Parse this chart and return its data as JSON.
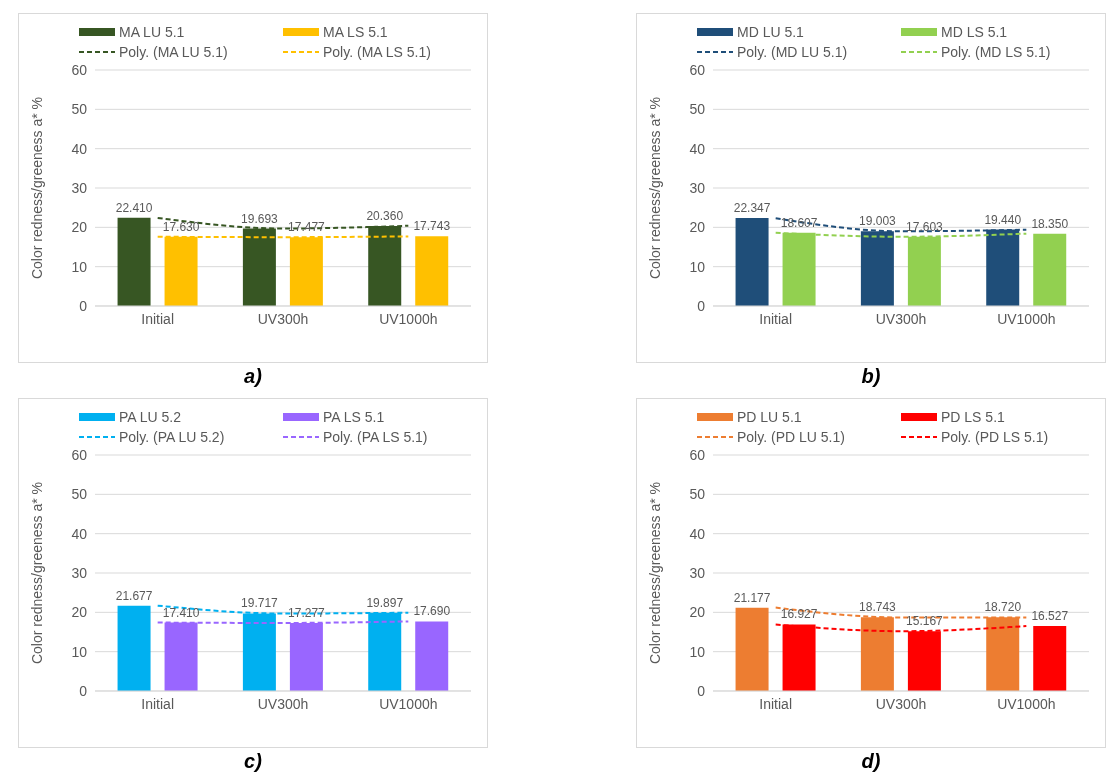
{
  "chart_data": [
    {
      "type": "bar",
      "ylabel": "Color redness/greeness a* %",
      "categories": [
        "Initial",
        "UV300h",
        "UV1000h"
      ],
      "ylim": [
        0,
        60
      ],
      "yticks": [
        0,
        10,
        20,
        30,
        40,
        50,
        60
      ],
      "grid": "y",
      "legend": "top",
      "annotations": [
        "a)"
      ],
      "series": [
        {
          "name": "MA LU 5.1",
          "color": "#375623",
          "values": [
            22.41,
            19.693,
            20.36
          ],
          "value_labels": [
            "22.410",
            "19.693",
            "20.360"
          ]
        },
        {
          "name": "MA LS 5.1",
          "color": "#ffc000",
          "values": [
            17.63,
            17.477,
            17.743
          ],
          "value_labels": [
            "17.630",
            "17.477",
            "17.743"
          ]
        },
        {
          "name": "Poly. (MA LU 5.1)",
          "type": "line",
          "line_style": "dashed",
          "marker": "none",
          "color": "#375623",
          "x": [
            "Initial",
            "UV300h",
            "UV1000h"
          ],
          "values": [
            22.4,
            19.7,
            20.4
          ]
        },
        {
          "name": "Poly. (MA LS 5.1)",
          "type": "line",
          "line_style": "dashed",
          "marker": "none",
          "color": "#ffc000",
          "x": [
            "Initial",
            "UV300h",
            "UV1000h"
          ],
          "values": [
            17.6,
            17.5,
            17.7
          ]
        }
      ]
    },
    {
      "type": "bar",
      "ylabel": "Color redness/greeness a* %",
      "categories": [
        "Initial",
        "UV300h",
        "UV1000h"
      ],
      "ylim": [
        0,
        60
      ],
      "yticks": [
        0,
        10,
        20,
        30,
        40,
        50,
        60
      ],
      "grid": "y",
      "legend": "top",
      "annotations": [
        "b)"
      ],
      "series": [
        {
          "name": "MD LU 5.1",
          "color": "#1f4e79",
          "values": [
            22.347,
            19.003,
            19.44
          ],
          "value_labels": [
            "22.347",
            "19.003",
            "19.440"
          ]
        },
        {
          "name": "MD LS 5.1",
          "color": "#92d050",
          "values": [
            18.607,
            17.603,
            18.35
          ],
          "value_labels": [
            "18.607",
            "17.603",
            "18.350"
          ]
        },
        {
          "name": "Poly. (MD LU 5.1)",
          "type": "line",
          "line_style": "dashed",
          "marker": "none",
          "color": "#1f4e79",
          "x": [
            "Initial",
            "UV300h",
            "UV1000h"
          ],
          "values": [
            22.3,
            19.0,
            19.4
          ]
        },
        {
          "name": "Poly. (MD LS 5.1)",
          "type": "line",
          "line_style": "dashed",
          "marker": "none",
          "color": "#92d050",
          "x": [
            "Initial",
            "UV300h",
            "UV1000h"
          ],
          "values": [
            18.6,
            17.6,
            18.4
          ]
        }
      ]
    },
    {
      "type": "bar",
      "ylabel": "Color redness/greeness a* %",
      "categories": [
        "Initial",
        "UV300h",
        "UV1000h"
      ],
      "ylim": [
        0,
        60
      ],
      "yticks": [
        0,
        10,
        20,
        30,
        40,
        50,
        60
      ],
      "grid": "y",
      "legend": "top",
      "annotations": [
        "c)"
      ],
      "series": [
        {
          "name": "PA LU 5.2",
          "color": "#00b0f0",
          "values": [
            21.677,
            19.717,
            19.897
          ],
          "value_labels": [
            "21.677",
            "19.717",
            "19.897"
          ]
        },
        {
          "name": "PA LS 5.1",
          "color": "#9966ff",
          "values": [
            17.41,
            17.277,
            17.69
          ],
          "value_labels": [
            "17.410",
            "17.277",
            "17.690"
          ]
        },
        {
          "name": "Poly. (PA LU 5.2)",
          "type": "line",
          "line_style": "dashed",
          "marker": "none",
          "color": "#00b0f0",
          "x": [
            "Initial",
            "UV300h",
            "UV1000h"
          ],
          "values": [
            21.7,
            19.7,
            19.9
          ]
        },
        {
          "name": "Poly. (PA LS 5.1)",
          "type": "line",
          "line_style": "dashed",
          "marker": "none",
          "color": "#9966ff",
          "x": [
            "Initial",
            "UV300h",
            "UV1000h"
          ],
          "values": [
            17.4,
            17.3,
            17.7
          ]
        }
      ]
    },
    {
      "type": "bar",
      "ylabel": "Color redness/greeness a* %",
      "categories": [
        "Initial",
        "UV300h",
        "UV1000h"
      ],
      "ylim": [
        0,
        60
      ],
      "yticks": [
        0,
        10,
        20,
        30,
        40,
        50,
        60
      ],
      "grid": "y",
      "legend": "top",
      "annotations": [
        "d)"
      ],
      "series": [
        {
          "name": "PD LU 5.1",
          "color": "#ed7d31",
          "values": [
            21.177,
            18.743,
            18.72
          ],
          "value_labels": [
            "21.177",
            "18.743",
            "18.720"
          ]
        },
        {
          "name": "PD LS 5.1",
          "color": "#ff0000",
          "values": [
            16.927,
            15.167,
            16.527
          ],
          "value_labels": [
            "16.927",
            "15.167",
            "16.527"
          ]
        },
        {
          "name": "Poly. (PD LU 5.1)",
          "type": "line",
          "line_style": "dashed",
          "marker": "none",
          "color": "#ed7d31",
          "x": [
            "Initial",
            "UV300h",
            "UV1000h"
          ],
          "values": [
            21.2,
            18.7,
            18.7
          ]
        },
        {
          "name": "Poly. (PD LS 5.1)",
          "type": "line",
          "line_style": "dashed",
          "marker": "none",
          "color": "#ff0000",
          "x": [
            "Initial",
            "UV300h",
            "UV1000h"
          ],
          "values": [
            16.9,
            15.2,
            16.5
          ]
        }
      ]
    }
  ]
}
